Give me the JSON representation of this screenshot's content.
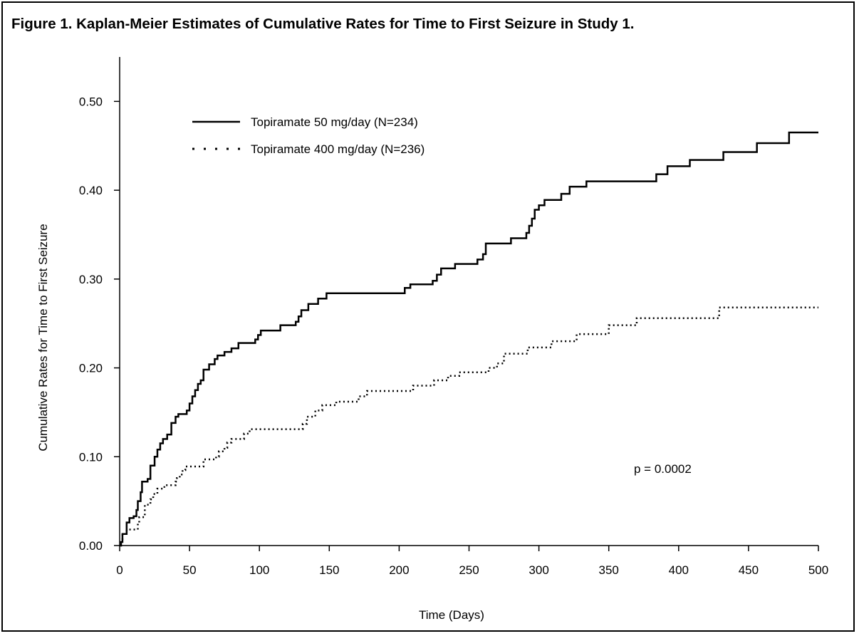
{
  "figure": {
    "title": "Figure 1. Kaplan-Meier Estimates of Cumulative Rates for Time to First Seizure in Study 1."
  },
  "chart_data": {
    "type": "line",
    "step": true,
    "title": "Figure 1. Kaplan-Meier Estimates of Cumulative Rates for Time to First Seizure in Study 1.",
    "xlabel": "Time (Days)",
    "ylabel": "Cumulative Rates for Time to First Seizure",
    "xlim": [
      0,
      500
    ],
    "ylim": [
      0,
      0.55
    ],
    "xticks": [
      "0",
      "50",
      "100",
      "150",
      "200",
      "250",
      "300",
      "350",
      "400",
      "450",
      "500"
    ],
    "yticks": [
      "0.00",
      "0.10",
      "0.20",
      "0.30",
      "0.40",
      "0.50"
    ],
    "grid": false,
    "legend_position": "top-left",
    "annotation": "p = 0.0002",
    "series": [
      {
        "name": "Topiramate 50 mg/day (N=234)",
        "style": "solid",
        "color": "#000000",
        "points": [
          [
            0,
            0.0
          ],
          [
            1,
            0.004
          ],
          [
            2,
            0.013
          ],
          [
            5,
            0.026
          ],
          [
            7,
            0.031
          ],
          [
            10,
            0.033
          ],
          [
            12,
            0.04
          ],
          [
            13,
            0.05
          ],
          [
            15,
            0.06
          ],
          [
            16,
            0.072
          ],
          [
            20,
            0.075
          ],
          [
            22,
            0.09
          ],
          [
            25,
            0.1
          ],
          [
            27,
            0.108
          ],
          [
            29,
            0.115
          ],
          [
            31,
            0.12
          ],
          [
            34,
            0.125
          ],
          [
            37,
            0.138
          ],
          [
            40,
            0.145
          ],
          [
            42,
            0.148
          ],
          [
            48,
            0.152
          ],
          [
            50,
            0.16
          ],
          [
            52,
            0.168
          ],
          [
            54,
            0.175
          ],
          [
            56,
            0.182
          ],
          [
            58,
            0.186
          ],
          [
            60,
            0.198
          ],
          [
            64,
            0.204
          ],
          [
            68,
            0.21
          ],
          [
            70,
            0.214
          ],
          [
            75,
            0.218
          ],
          [
            80,
            0.222
          ],
          [
            85,
            0.228
          ],
          [
            97,
            0.232
          ],
          [
            99,
            0.237
          ],
          [
            101,
            0.242
          ],
          [
            115,
            0.248
          ],
          [
            126,
            0.252
          ],
          [
            128,
            0.258
          ],
          [
            130,
            0.265
          ],
          [
            135,
            0.272
          ],
          [
            142,
            0.278
          ],
          [
            148,
            0.284
          ],
          [
            204,
            0.29
          ],
          [
            208,
            0.294
          ],
          [
            224,
            0.298
          ],
          [
            227,
            0.305
          ],
          [
            230,
            0.312
          ],
          [
            240,
            0.317
          ],
          [
            256,
            0.322
          ],
          [
            260,
            0.328
          ],
          [
            262,
            0.34
          ],
          [
            280,
            0.346
          ],
          [
            291,
            0.352
          ],
          [
            293,
            0.36
          ],
          [
            295,
            0.368
          ],
          [
            297,
            0.378
          ],
          [
            300,
            0.383
          ],
          [
            304,
            0.389
          ],
          [
            316,
            0.396
          ],
          [
            322,
            0.404
          ],
          [
            334,
            0.41
          ],
          [
            384,
            0.418
          ],
          [
            392,
            0.427
          ],
          [
            408,
            0.434
          ],
          [
            432,
            0.443
          ],
          [
            456,
            0.453
          ],
          [
            479,
            0.465
          ],
          [
            500,
            0.465
          ]
        ]
      },
      {
        "name": "Topiramate 400 mg/day (N=236)",
        "style": "dotted",
        "color": "#000000",
        "points": [
          [
            0,
            0.0
          ],
          [
            1,
            0.005
          ],
          [
            2,
            0.013
          ],
          [
            5,
            0.018
          ],
          [
            13,
            0.025
          ],
          [
            14,
            0.032
          ],
          [
            18,
            0.046
          ],
          [
            22,
            0.052
          ],
          [
            24,
            0.058
          ],
          [
            27,
            0.064
          ],
          [
            32,
            0.068
          ],
          [
            40,
            0.072
          ],
          [
            41,
            0.076
          ],
          [
            43,
            0.08
          ],
          [
            45,
            0.085
          ],
          [
            47,
            0.089
          ],
          [
            60,
            0.097
          ],
          [
            69,
            0.1
          ],
          [
            71,
            0.106
          ],
          [
            75,
            0.11
          ],
          [
            77,
            0.116
          ],
          [
            80,
            0.12
          ],
          [
            89,
            0.126
          ],
          [
            93,
            0.131
          ],
          [
            115,
            0.131
          ],
          [
            131,
            0.137
          ],
          [
            134,
            0.145
          ],
          [
            140,
            0.152
          ],
          [
            145,
            0.158
          ],
          [
            155,
            0.162
          ],
          [
            171,
            0.168
          ],
          [
            177,
            0.174
          ],
          [
            210,
            0.18
          ],
          [
            225,
            0.186
          ],
          [
            235,
            0.191
          ],
          [
            243,
            0.195
          ],
          [
            264,
            0.2
          ],
          [
            270,
            0.205
          ],
          [
            275,
            0.216
          ],
          [
            292,
            0.223
          ],
          [
            309,
            0.23
          ],
          [
            327,
            0.238
          ],
          [
            350,
            0.248
          ],
          [
            370,
            0.256
          ],
          [
            429,
            0.268
          ],
          [
            500,
            0.268
          ]
        ]
      }
    ]
  },
  "colors": {
    "line": "#000000",
    "background": "#ffffff"
  }
}
